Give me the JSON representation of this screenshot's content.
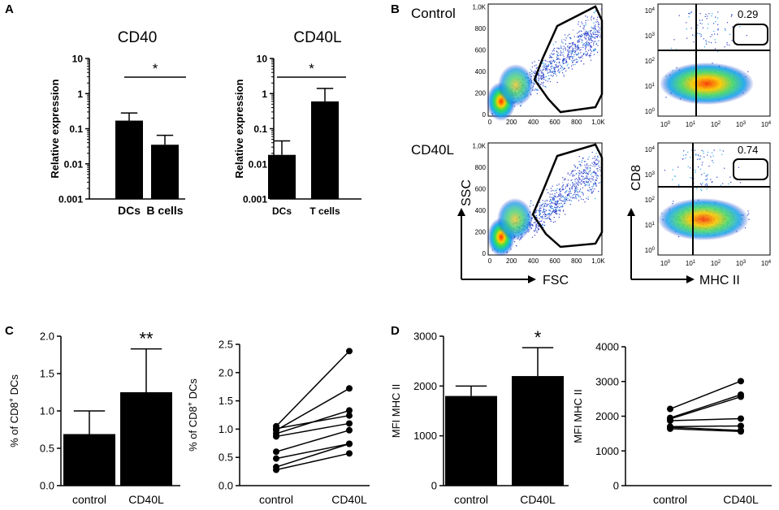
{
  "panel_labels": {
    "a": "A",
    "b": "B",
    "c": "C",
    "d": "D"
  },
  "panel_b": {
    "row_labels": {
      "control": "Control",
      "cd40l": "CD40L"
    },
    "scatter_ticks": [
      "0",
      "200",
      "400",
      "600",
      "800",
      "1,0K"
    ],
    "scatter_axes": {
      "x": "FSC",
      "y": "SSC"
    },
    "facs_axes": {
      "x": "MHC II",
      "y": "CD8"
    },
    "facs_ticks": [
      "0",
      "1",
      "2",
      "3",
      "4"
    ],
    "facs_tick_base": "10",
    "gate_values": {
      "control": "0.29",
      "cd40l": "0.74"
    }
  },
  "chart_data": [
    {
      "id": "a-left",
      "type": "bar",
      "title": "CD40",
      "ylabel": "Relative expression",
      "yscale": "log",
      "ylim": [
        0.001,
        10
      ],
      "yticks": [
        "0.001",
        "0.01",
        "0.1",
        "1",
        "10"
      ],
      "categories": [
        "DCs",
        "B cells"
      ],
      "values": [
        0.17,
        0.035
      ],
      "errors_upper": [
        0.28,
        0.065
      ],
      "significance": "*"
    },
    {
      "id": "a-right",
      "type": "bar",
      "title": "CD40L",
      "ylabel": "Relative expression",
      "yscale": "log",
      "ylim": [
        0.001,
        10
      ],
      "yticks": [
        "0.001",
        "0.01",
        "0.1",
        "1",
        "10"
      ],
      "categories": [
        "DCs",
        "T cells"
      ],
      "values": [
        0.018,
        0.6
      ],
      "errors_upper": [
        0.045,
        1.4
      ],
      "significance": "*"
    },
    {
      "id": "c-left",
      "type": "bar",
      "ylabel_pre": "% of CD8",
      "ylabel_sup": "+",
      "ylabel_post": " DCs",
      "ylim": [
        0,
        2.0
      ],
      "yticks": [
        "0.0",
        "0.5",
        "1.0",
        "1.5",
        "2.0"
      ],
      "categories": [
        "control",
        "CD40L"
      ],
      "values": [
        0.69,
        1.25
      ],
      "errors_upper": [
        1.0,
        1.83
      ],
      "significance": "**"
    },
    {
      "id": "c-right",
      "type": "line",
      "ylabel_pre": "% of CD8",
      "ylabel_sup": "+",
      "ylabel_post": " DCs",
      "ylim": [
        0,
        2.5
      ],
      "yticks": [
        "0.0",
        "0.5",
        "1.0",
        "1.5",
        "2.0",
        "2.5"
      ],
      "categories": [
        "control",
        "CD40L"
      ],
      "pairs": [
        [
          1.05,
          2.38
        ],
        [
          0.98,
          1.72
        ],
        [
          0.92,
          1.33
        ],
        [
          1.01,
          1.24
        ],
        [
          0.87,
          1.1
        ],
        [
          0.6,
          0.98
        ],
        [
          0.48,
          0.74
        ],
        [
          0.33,
          0.74
        ],
        [
          0.28,
          0.57
        ]
      ]
    },
    {
      "id": "d-left",
      "type": "bar",
      "ylabel": "MFI MHC II",
      "ylim": [
        0,
        3000
      ],
      "yticks": [
        "0",
        "1000",
        "2000",
        "3000"
      ],
      "categories": [
        "control",
        "CD40L"
      ],
      "values": [
        1800,
        2200
      ],
      "errors_upper": [
        2000,
        2770
      ],
      "significance": "*"
    },
    {
      "id": "d-right",
      "type": "line",
      "ylabel": "MFI MHC II",
      "ylim": [
        0,
        4000
      ],
      "yticks": [
        "0",
        "1000",
        "2000",
        "3000",
        "4000"
      ],
      "categories": [
        "control",
        "CD40L"
      ],
      "pairs": [
        [
          2210,
          3010
        ],
        [
          1950,
          2620
        ],
        [
          1920,
          2560
        ],
        [
          1870,
          1930
        ],
        [
          1700,
          1720
        ],
        [
          1680,
          1590
        ],
        [
          1640,
          1560
        ]
      ]
    }
  ]
}
